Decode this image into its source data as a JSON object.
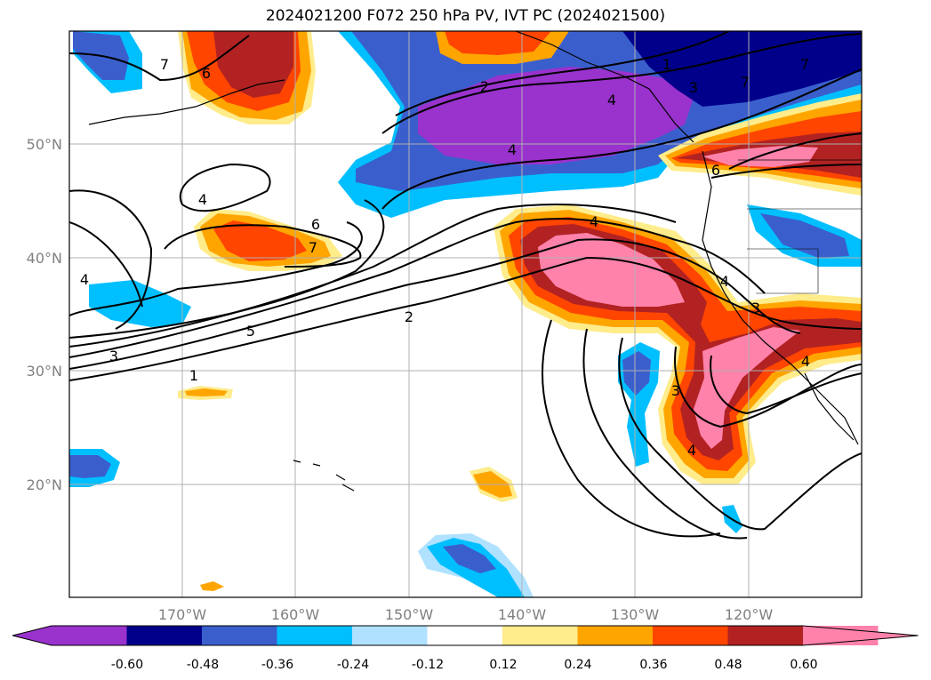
{
  "title": "2024021200 F072 250 hPa PV, IVT PC (2024021500)",
  "x_ticks": [
    "170°W",
    "160°W",
    "150°W",
    "140°W",
    "130°W",
    "120°W"
  ],
  "y_ticks": [
    "50°N",
    "40°N",
    "30°N",
    "20°N"
  ],
  "colorbar": {
    "labels": [
      "-0.60",
      "-0.48",
      "-0.36",
      "-0.24",
      "-0.12",
      "0.12",
      "0.24",
      "0.36",
      "0.48",
      "0.60"
    ],
    "colors": [
      "#9a32cd",
      "#00008b",
      "#3a5fcd",
      "#00bfff",
      "#b0e2ff",
      "#ffffff",
      "#ffec8b",
      "#ffa500",
      "#ff4500",
      "#b22222",
      "#ff82ab"
    ]
  },
  "contour_labels": [
    "1",
    "2",
    "3",
    "4",
    "5",
    "6",
    "7",
    "6",
    "7",
    "4",
    "4",
    "2",
    "3",
    "4",
    "1",
    "3",
    "4",
    "4",
    "3",
    "7",
    "4",
    "6",
    "7",
    "4"
  ],
  "colors": {
    "coast": "#000000",
    "grid": "#b0b0b0",
    "contour": "#000000"
  }
}
